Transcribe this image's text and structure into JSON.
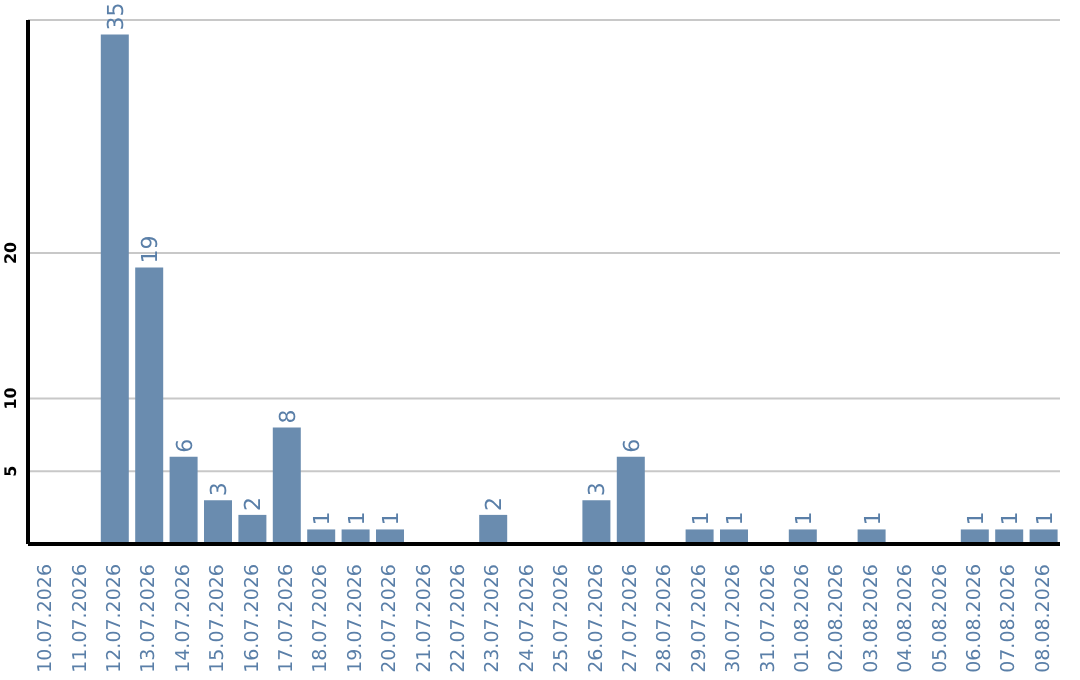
{
  "chart_data": {
    "type": "bar",
    "categories": [
      "10.07.2026",
      "11.07.2026",
      "12.07.2026",
      "13.07.2026",
      "14.07.2026",
      "15.07.2026",
      "16.07.2026",
      "17.07.2026",
      "18.07.2026",
      "19.07.2026",
      "20.07.2026",
      "21.07.2026",
      "22.07.2026",
      "23.07.2026",
      "24.07.2026",
      "25.07.2026",
      "26.07.2026",
      "27.07.2026",
      "28.07.2026",
      "29.07.2026",
      "30.07.2026",
      "31.07.2026",
      "01.08.2026",
      "02.08.2026",
      "03.08.2026",
      "04.08.2026",
      "05.08.2026",
      "06.08.2026",
      "07.08.2026",
      "08.08.2026"
    ],
    "values": [
      0,
      0,
      35,
      19,
      6,
      3,
      2,
      8,
      1,
      1,
      1,
      0,
      0,
      2,
      0,
      0,
      3,
      6,
      0,
      1,
      1,
      0,
      1,
      0,
      1,
      0,
      0,
      1,
      1,
      1
    ],
    "value_labels": [
      null,
      null,
      "35",
      "19",
      "6",
      "3",
      "2",
      "8",
      "1",
      "1",
      "1",
      null,
      null,
      "2",
      null,
      null,
      "3",
      "6",
      null,
      "1",
      "1",
      null,
      "1",
      null,
      "1",
      null,
      null,
      "1",
      "1",
      "1"
    ],
    "color": "#6a8caf",
    "ylim": [
      0,
      36
    ],
    "yticks": [
      5,
      10,
      20
    ],
    "grid": "y"
  }
}
